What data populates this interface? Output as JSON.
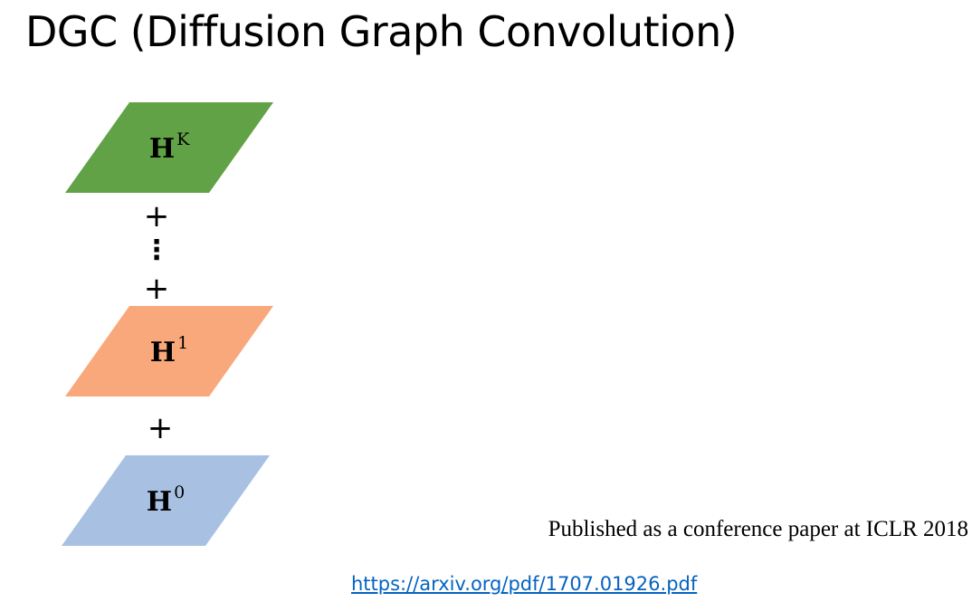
{
  "slide": {
    "title": "DGC (Diffusion Graph Convolution)"
  },
  "diagram": {
    "layers": [
      {
        "id": "layer-k",
        "base": "H",
        "superscript": "K",
        "color": "#62a246"
      },
      {
        "id": "layer-1",
        "base": "H",
        "superscript": "1",
        "color": "#f9a87c"
      },
      {
        "id": "layer-0",
        "base": "H",
        "superscript": "0",
        "color": "#a8c1e3"
      }
    ],
    "operators": {
      "plus_top": "+",
      "ellipsis": "⋮",
      "plus_middle": "+",
      "plus_bottom": "+"
    }
  },
  "footer": {
    "publication": "Published as a conference paper at ICLR 2018",
    "link": "https://arxiv.org/pdf/1707.01926.pdf"
  }
}
